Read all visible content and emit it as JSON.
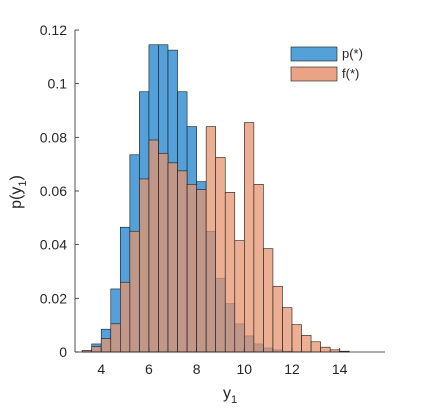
{
  "chart_data": {
    "type": "bar",
    "subtype": "histogram-overlay",
    "title": "",
    "xlabel": "y",
    "xlabel_subscript": "1",
    "ylabel_main": "p(y",
    "ylabel_subscript": "1",
    "ylabel_close": ")",
    "xlim": [
      2.9,
      15.9
    ],
    "ylim": [
      0,
      0.12
    ],
    "xticks": [
      4,
      6,
      8,
      10,
      12,
      14
    ],
    "yticks": [
      0,
      0.02,
      0.04,
      0.06,
      0.08,
      0.1,
      0.12
    ],
    "ytick_labels": [
      "0",
      "0.02",
      "0.04",
      "0.06",
      "0.08",
      "0.1",
      "0.12"
    ],
    "grid": false,
    "legend_position": "top-right",
    "bin_width": 0.4,
    "bin_edges_start": 3.2,
    "series": [
      {
        "name": "p(*)",
        "color": "#0072BD",
        "fill": "#4a9cd6",
        "edge": "#1a1a1a",
        "values": [
          0.0005,
          0.003,
          0.0085,
          0.0235,
          0.0465,
          0.0735,
          0.097,
          0.1145,
          0.1145,
          0.1125,
          0.097,
          0.084,
          0.0635,
          0.045,
          0.0275,
          0.018,
          0.0105,
          0.006,
          0.003,
          0.0015,
          0.0008,
          0.0003,
          0.0001,
          0.0001,
          0,
          0,
          0,
          0
        ]
      },
      {
        "name": "f(*)",
        "color": "#D95319",
        "fill": "#e69470",
        "edge": "#1a1a1a",
        "values": [
          0.0005,
          0.002,
          0.005,
          0.0105,
          0.026,
          0.045,
          0.0645,
          0.079,
          0.074,
          0.0705,
          0.0675,
          0.0625,
          0.0605,
          0.084,
          0.0725,
          0.0595,
          0.0415,
          0.0855,
          0.0625,
          0.0385,
          0.0245,
          0.0165,
          0.0102,
          0.0062,
          0.0038,
          0.0018,
          0.0008,
          0.0003
        ]
      }
    ]
  }
}
